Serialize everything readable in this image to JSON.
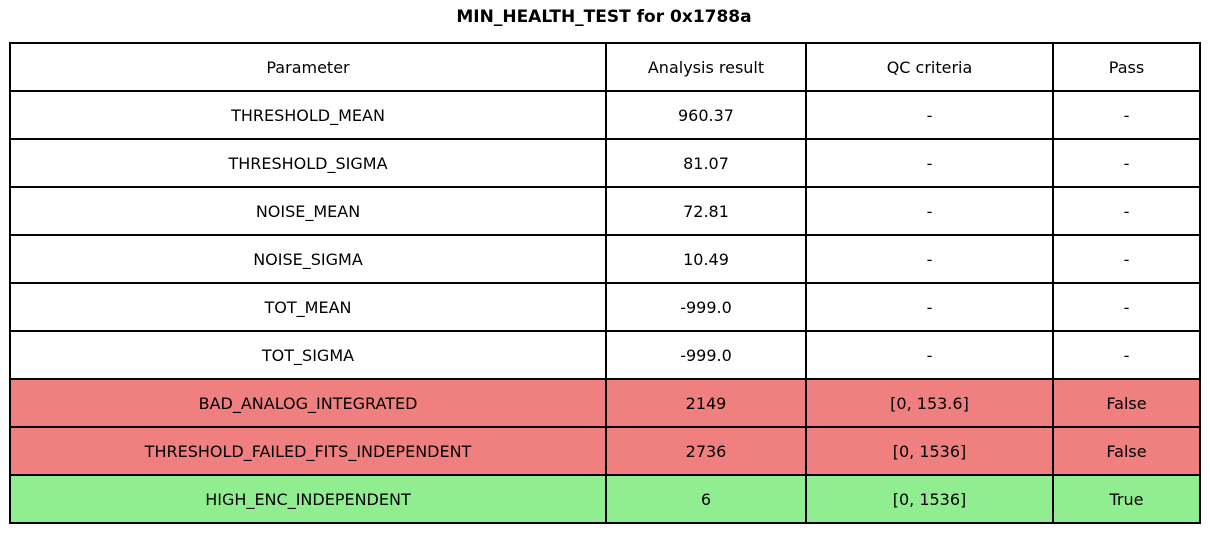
{
  "title": "MIN_HEALTH_TEST for 0x1788a",
  "chart_data": {
    "type": "table",
    "title": "MIN_HEALTH_TEST for 0x1788a",
    "columns": [
      "Parameter",
      "Analysis result",
      "QC criteria",
      "Pass"
    ],
    "rows": [
      {
        "parameter": "THRESHOLD_MEAN",
        "result": "960.37",
        "qc": "-",
        "pass": "-",
        "status": "neutral"
      },
      {
        "parameter": "THRESHOLD_SIGMA",
        "result": "81.07",
        "qc": "-",
        "pass": "-",
        "status": "neutral"
      },
      {
        "parameter": "NOISE_MEAN",
        "result": "72.81",
        "qc": "-",
        "pass": "-",
        "status": "neutral"
      },
      {
        "parameter": "NOISE_SIGMA",
        "result": "10.49",
        "qc": "-",
        "pass": "-",
        "status": "neutral"
      },
      {
        "parameter": "TOT_MEAN",
        "result": "-999.0",
        "qc": "-",
        "pass": "-",
        "status": "neutral"
      },
      {
        "parameter": "TOT_SIGMA",
        "result": "-999.0",
        "qc": "-",
        "pass": "-",
        "status": "neutral"
      },
      {
        "parameter": "BAD_ANALOG_INTEGRATED",
        "result": "2149",
        "qc": "[0, 153.6]",
        "pass": "False",
        "status": "fail"
      },
      {
        "parameter": "THRESHOLD_FAILED_FITS_INDEPENDENT",
        "result": "2736",
        "qc": "[0, 1536]",
        "pass": "False",
        "status": "fail"
      },
      {
        "parameter": "HIGH_ENC_INDEPENDENT",
        "result": "6",
        "qc": "[0, 1536]",
        "pass": "True",
        "status": "pass"
      }
    ]
  },
  "colors": {
    "fail_row_bg": "#f08080",
    "pass_row_bg": "#90ee90",
    "border": "#000000",
    "text": "#000000",
    "background": "#ffffff"
  }
}
